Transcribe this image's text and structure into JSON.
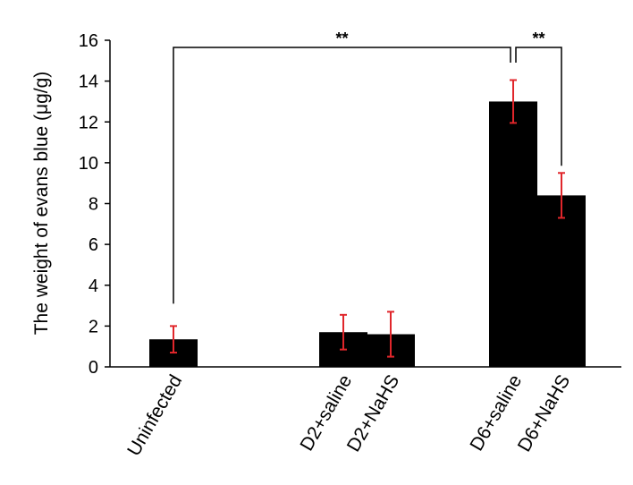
{
  "chart_data": {
    "type": "bar",
    "title": "",
    "xlabel": "",
    "ylabel": "The weight of evans blue (μg/g)",
    "ylim": [
      0,
      16
    ],
    "yticks": [
      0,
      2,
      4,
      6,
      8,
      10,
      12,
      14,
      16
    ],
    "grid": false,
    "legend": "none",
    "bar_color": "#000000",
    "error_color": "#e0262b",
    "categories": [
      "Uninfected",
      "D2+saline",
      "D2+NaHS",
      "D6+saline",
      "D6+NaHS"
    ],
    "values": [
      1.35,
      1.7,
      1.6,
      13.0,
      8.4
    ],
    "errors": [
      0.65,
      0.85,
      1.1,
      1.05,
      1.1
    ],
    "significance": [
      {
        "from": "Uninfected",
        "to": "D6+saline",
        "label": "**"
      },
      {
        "from": "D6+saline",
        "to": "D6+NaHS",
        "label": "**"
      }
    ]
  }
}
